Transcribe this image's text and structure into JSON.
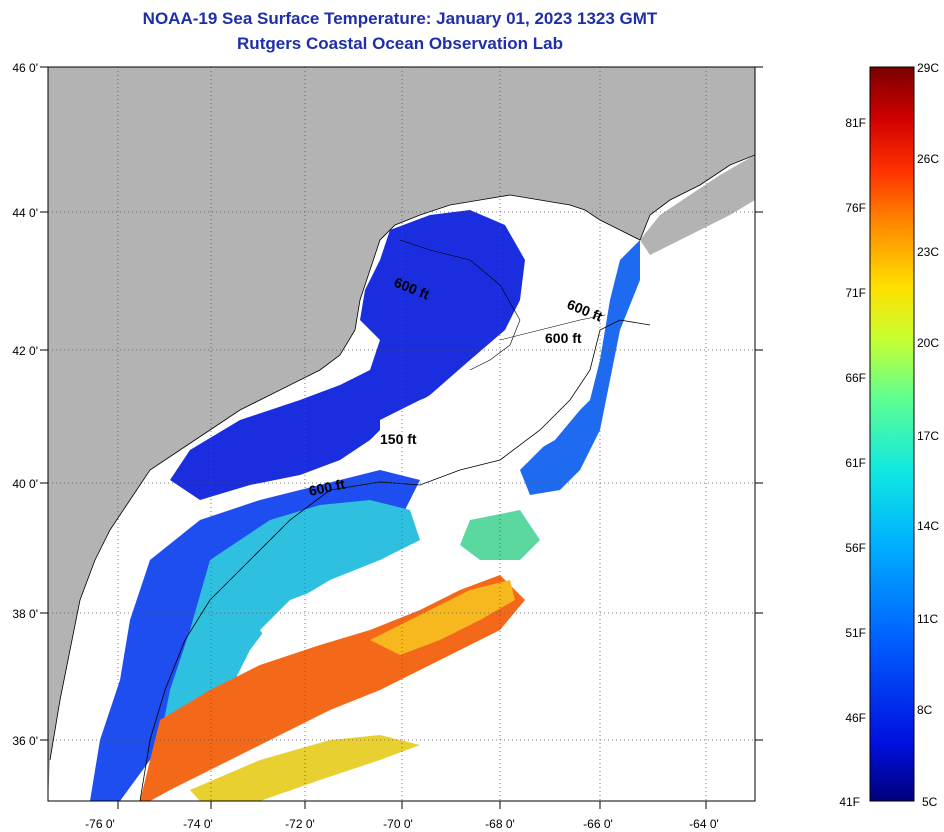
{
  "title": "NOAA-19 Sea Surface Temperature:  January 01, 2023 1323 GMT",
  "subtitle": "Rutgers Coastal Ocean Observation Lab",
  "map": {
    "lat_labels": [
      "46 0'",
      "44 0'",
      "42 0'",
      "40 0'",
      "38 0'",
      "36 0'"
    ],
    "lon_labels": [
      "-76 0'",
      "-74 0'",
      "-72 0'",
      "-70 0'",
      "-68 0'",
      "-66 0'",
      "-64 0'"
    ],
    "contour_labels": [
      "600 ft",
      "600 ft",
      "600 ft",
      "150 ft",
      "600 ft"
    ],
    "colors": {
      "land": "#b3b3b3",
      "cloud": "#ffffff",
      "cold": "#1a2fe0",
      "warm": "#f25a10"
    }
  },
  "colorbar": {
    "celsius": [
      "29C",
      "26C",
      "23C",
      "20C",
      "17C",
      "14C",
      "11C",
      "8C",
      "5C"
    ],
    "fahrenheit": [
      "81F",
      "76F",
      "71F",
      "66F",
      "61F",
      "56F",
      "51F",
      "46F",
      "41F"
    ],
    "colors": [
      "#00007a",
      "#0010e0",
      "#0060ff",
      "#00b0ff",
      "#10e8e0",
      "#60ff90",
      "#c8ff30",
      "#ffe000",
      "#ff9000",
      "#ff3000",
      "#d00000",
      "#7a0000"
    ]
  }
}
